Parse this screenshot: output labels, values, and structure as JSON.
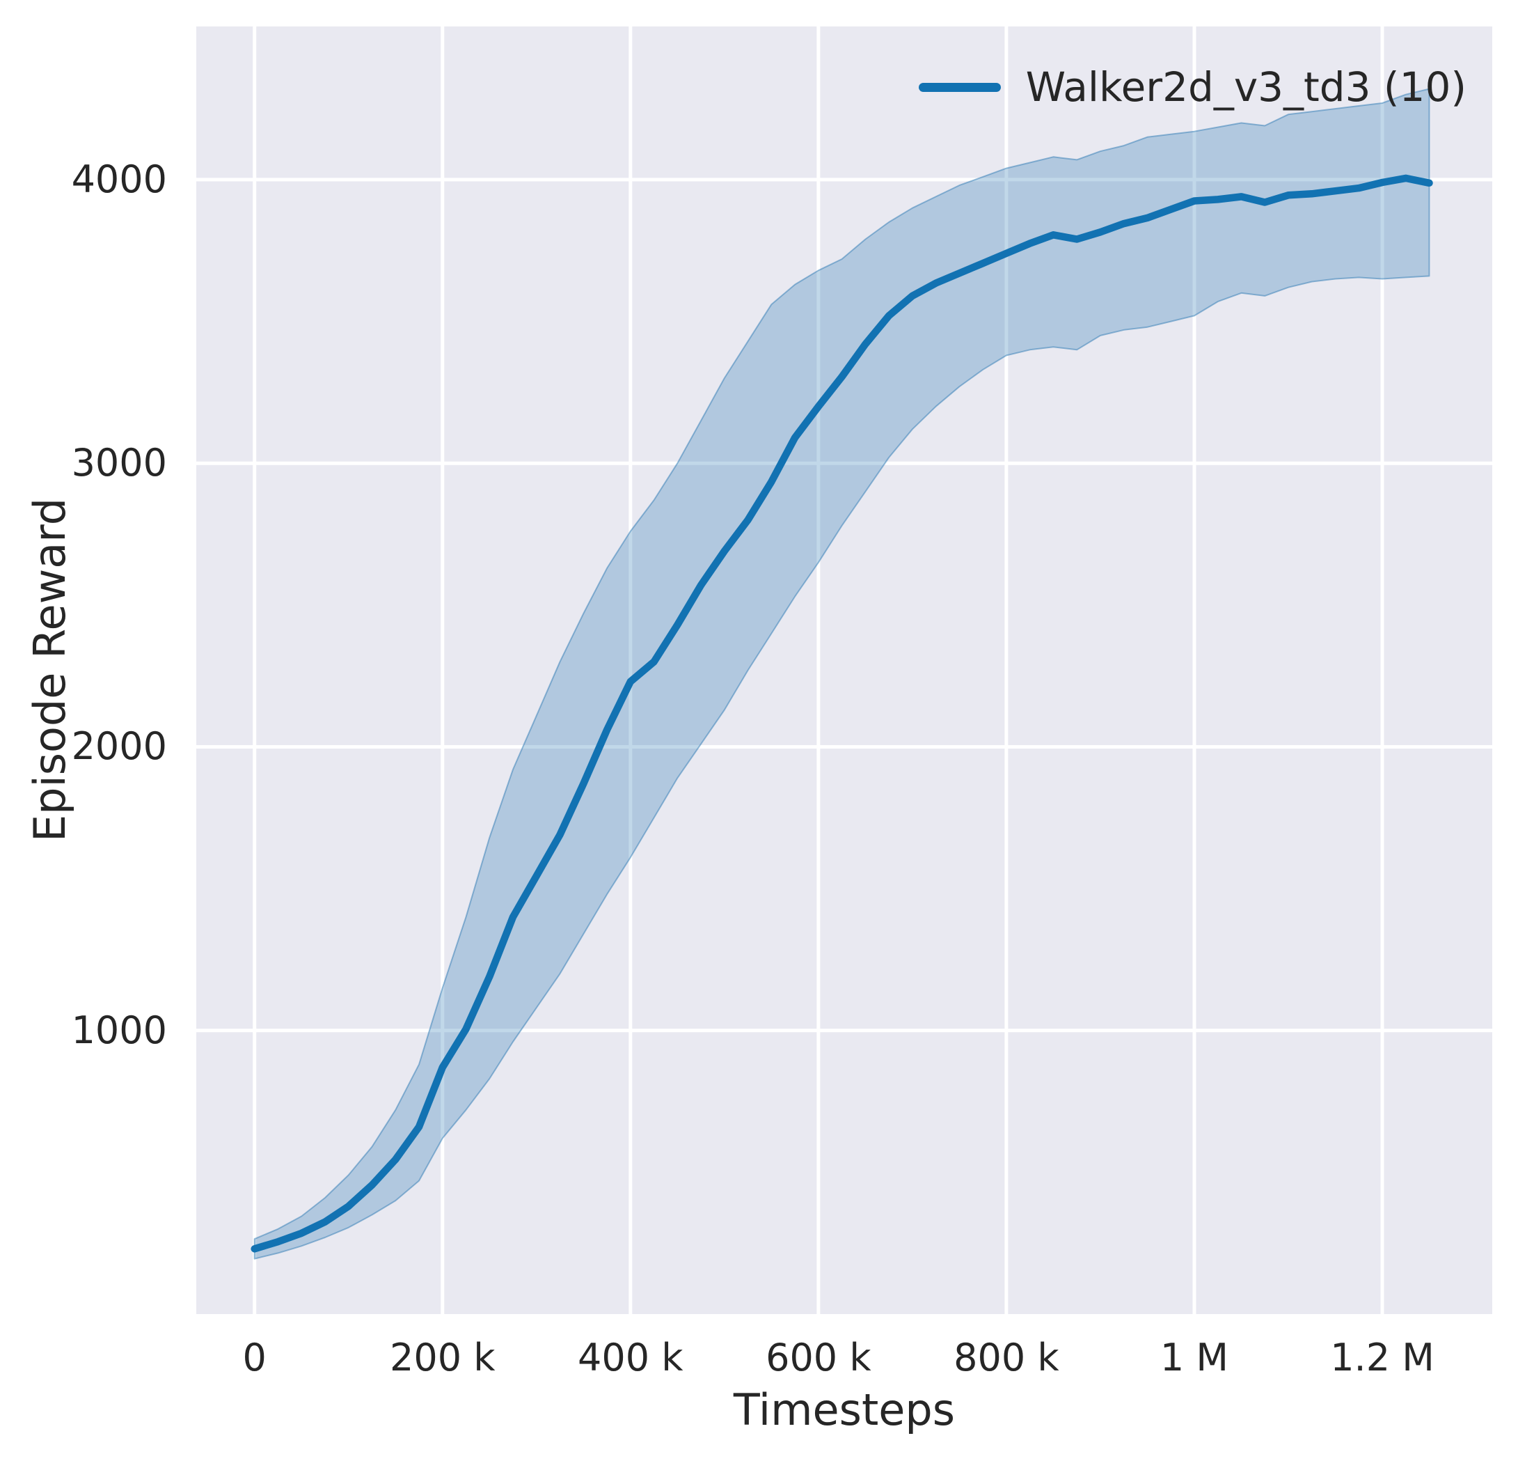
{
  "chart_data": {
    "type": "line",
    "title": "",
    "xlabel": "Timesteps",
    "ylabel": "Episode Reward",
    "grid": true,
    "legend_position": "upper right",
    "xlim": [
      -62000,
      1317000
    ],
    "ylim": [
      0,
      4540
    ],
    "x_ticks": [
      0,
      200000,
      400000,
      600000,
      800000,
      1000000,
      1200000
    ],
    "x_tick_labels": [
      "0",
      "200 k",
      "400 k",
      "600 k",
      "800 k",
      "1 M",
      "1.2 M"
    ],
    "y_ticks": [
      1000,
      2000,
      3000,
      4000
    ],
    "y_tick_labels": [
      "1000",
      "2000",
      "3000",
      "4000"
    ],
    "colors": {
      "plot_background": "#e9e9f1",
      "gridline": "#ffffff",
      "line": "#1272b2",
      "band_fill": "rgba(32,114,176,0.28)",
      "band_edge": "rgba(32,114,176,0.45)",
      "text": "#262626"
    },
    "series": [
      {
        "name": "Walker2d_v3_td3 (10)",
        "color": "#1272b2",
        "x": [
          0,
          25000,
          50000,
          75000,
          100000,
          125000,
          150000,
          175000,
          200000,
          225000,
          250000,
          275000,
          300000,
          325000,
          350000,
          375000,
          400000,
          425000,
          450000,
          475000,
          500000,
          525000,
          550000,
          575000,
          600000,
          625000,
          650000,
          675000,
          700000,
          725000,
          750000,
          775000,
          800000,
          825000,
          850000,
          875000,
          900000,
          925000,
          950000,
          975000,
          1000000,
          1025000,
          1050000,
          1075000,
          1100000,
          1125000,
          1150000,
          1175000,
          1200000,
          1225000,
          1250000
        ],
        "mean": [
          230,
          255,
          285,
          325,
          380,
          455,
          545,
          660,
          870,
          1005,
          1190,
          1400,
          1545,
          1690,
          1870,
          2060,
          2230,
          2300,
          2430,
          2570,
          2690,
          2800,
          2935,
          3090,
          3200,
          3305,
          3420,
          3520,
          3590,
          3635,
          3670,
          3705,
          3740,
          3775,
          3805,
          3790,
          3815,
          3845,
          3865,
          3895,
          3925,
          3930,
          3940,
          3920,
          3945,
          3950,
          3960,
          3970,
          3990,
          4005,
          3988
        ],
        "upper": [
          265,
          300,
          345,
          410,
          490,
          590,
          720,
          880,
          1150,
          1400,
          1680,
          1920,
          2110,
          2300,
          2470,
          2630,
          2760,
          2870,
          3000,
          3150,
          3300,
          3430,
          3560,
          3630,
          3680,
          3720,
          3790,
          3850,
          3900,
          3940,
          3980,
          4010,
          4040,
          4060,
          4080,
          4070,
          4100,
          4120,
          4150,
          4160,
          4170,
          4185,
          4200,
          4190,
          4230,
          4240,
          4250,
          4260,
          4270,
          4300,
          4320
        ],
        "lower": [
          195,
          215,
          240,
          270,
          305,
          350,
          400,
          470,
          620,
          720,
          830,
          960,
          1080,
          1200,
          1340,
          1480,
          1610,
          1750,
          1890,
          2010,
          2130,
          2270,
          2400,
          2530,
          2650,
          2780,
          2900,
          3020,
          3120,
          3200,
          3270,
          3330,
          3380,
          3400,
          3410,
          3400,
          3450,
          3470,
          3480,
          3500,
          3520,
          3570,
          3600,
          3590,
          3620,
          3640,
          3650,
          3655,
          3650,
          3655,
          3660
        ]
      }
    ]
  }
}
